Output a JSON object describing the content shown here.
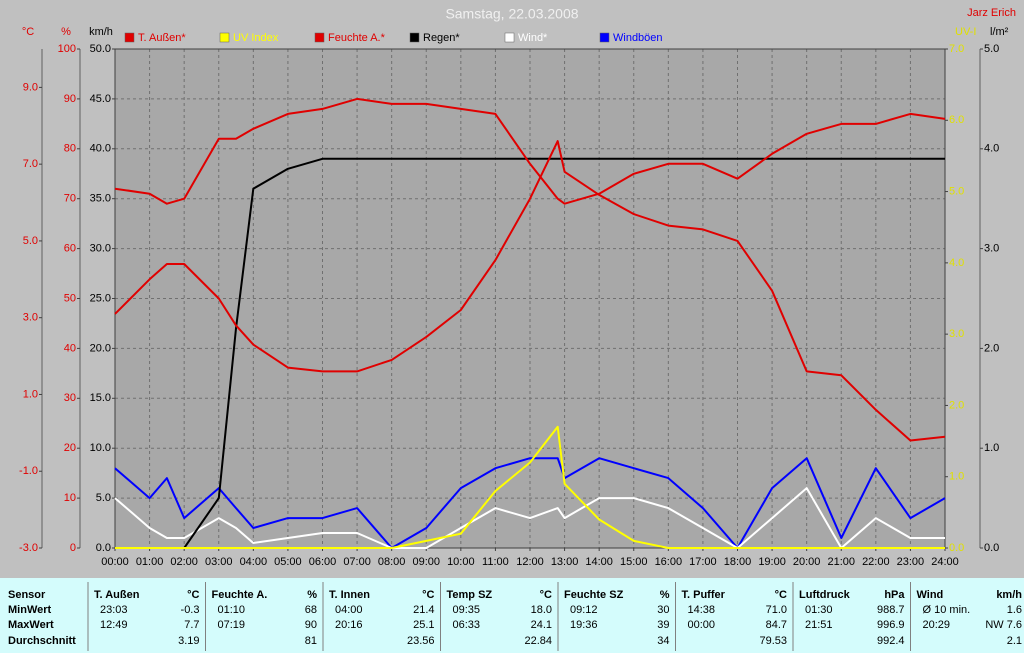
{
  "chart_data": {
    "type": "line",
    "title": "Samstag, 22.03.2008",
    "author": "Jarz Erich",
    "x": [
      0,
      1,
      1.5,
      2,
      3,
      3.5,
      4,
      5,
      6,
      7,
      8,
      9,
      10,
      11,
      12,
      12.8,
      13,
      14,
      15,
      16,
      17,
      18,
      19,
      20,
      21,
      22,
      23,
      24
    ],
    "xlim": [
      0,
      24
    ],
    "xticks": [
      {
        "value": 0,
        "label": "00:00"
      },
      {
        "value": 1,
        "label": "01:00"
      },
      {
        "value": 2,
        "label": "02:00"
      },
      {
        "value": 3,
        "label": "03:00"
      },
      {
        "value": 4,
        "label": "04:00"
      },
      {
        "value": 5,
        "label": "05:00"
      },
      {
        "value": 6,
        "label": "06:00"
      },
      {
        "value": 7,
        "label": "07:00"
      },
      {
        "value": 8,
        "label": "08:00"
      },
      {
        "value": 9,
        "label": "09:00"
      },
      {
        "value": 10,
        "label": "10:00"
      },
      {
        "value": 11,
        "label": "11:00"
      },
      {
        "value": 12,
        "label": "12:00"
      },
      {
        "value": 13,
        "label": "13:00"
      },
      {
        "value": 14,
        "label": "14:00"
      },
      {
        "value": 15,
        "label": "15:00"
      },
      {
        "value": 16,
        "label": "16:00"
      },
      {
        "value": 17,
        "label": "17:00"
      },
      {
        "value": 18,
        "label": "18:00"
      },
      {
        "value": 19,
        "label": "19:00"
      },
      {
        "value": 20,
        "label": "20:00"
      },
      {
        "value": 21,
        "label": "21:00"
      },
      {
        "value": 22,
        "label": "22:00"
      },
      {
        "value": 23,
        "label": "23:00"
      },
      {
        "value": 24,
        "label": "24:00"
      }
    ],
    "grid": true,
    "grid_axis": 2,
    "axes": [
      {
        "label": "°C",
        "side": "left",
        "color": "#e00000",
        "lim": [
          -3,
          10
        ],
        "ticks": [
          {
            "value": -3,
            "label": "-3.0"
          },
          {
            "value": -1,
            "label": "-1.0"
          },
          {
            "value": 1,
            "label": "1.0"
          },
          {
            "value": 3,
            "label": "3.0"
          },
          {
            "value": 5,
            "label": "5.0"
          },
          {
            "value": 7,
            "label": "7.0"
          },
          {
            "value": 9,
            "label": "9.0"
          }
        ]
      },
      {
        "label": "%",
        "side": "left",
        "color": "#e00000",
        "lim": [
          0,
          100
        ],
        "ticks": [
          0,
          10,
          20,
          30,
          40,
          50,
          60,
          70,
          80,
          90,
          100
        ]
      },
      {
        "label": "km/h",
        "side": "left",
        "color": "#000000",
        "lim": [
          0,
          50
        ],
        "ticks": [
          {
            "value": 0,
            "label": "0.0"
          },
          {
            "value": 5,
            "label": "5.0"
          },
          {
            "value": 10,
            "label": "10.0"
          },
          {
            "value": 15,
            "label": "15.0"
          },
          {
            "value": 20,
            "label": "20.0"
          },
          {
            "value": 25,
            "label": "25.0"
          },
          {
            "value": 30,
            "label": "30.0"
          },
          {
            "value": 35,
            "label": "35.0"
          },
          {
            "value": 40,
            "label": "40.0"
          },
          {
            "value": 45,
            "label": "45.0"
          },
          {
            "value": 50,
            "label": "50.0"
          }
        ]
      },
      {
        "label": "UV-I",
        "side": "right",
        "color": "#e0e000",
        "lim": [
          0,
          7
        ],
        "ticks": [
          {
            "value": 0,
            "label": "0.0"
          },
          {
            "value": 1,
            "label": "1.0"
          },
          {
            "value": 2,
            "label": "2.0"
          },
          {
            "value": 3,
            "label": "3.0"
          },
          {
            "value": 4,
            "label": "4.0"
          },
          {
            "value": 5,
            "label": "5.0"
          },
          {
            "value": 6,
            "label": "6.0"
          },
          {
            "value": 7,
            "label": "7.0"
          }
        ]
      },
      {
        "label": "l/m²",
        "side": "right",
        "color": "#000000",
        "lim": [
          0,
          5
        ],
        "ticks": [
          {
            "value": 0,
            "label": "0.0"
          },
          {
            "value": 1,
            "label": "1.0"
          },
          {
            "value": 2,
            "label": "2.0"
          },
          {
            "value": 3,
            "label": "3.0"
          },
          {
            "value": 4,
            "label": "4.0"
          },
          {
            "value": 5,
            "label": "5.0"
          }
        ]
      }
    ],
    "series": [
      {
        "name": "T. Außen*",
        "color": "#e00000",
        "axis": 0,
        "values": [
          3.1,
          4.0,
          4.4,
          4.4,
          3.5,
          2.8,
          2.3,
          1.7,
          1.6,
          1.6,
          1.9,
          2.5,
          3.2,
          4.5,
          6.1,
          7.6,
          6.8,
          6.2,
          5.7,
          5.4,
          5.3,
          5.0,
          3.7,
          1.6,
          1.5,
          0.6,
          -0.2,
          -0.1
        ]
      },
      {
        "name": "UV Index",
        "color": "#ffff00",
        "axis": 3,
        "values": [
          0,
          0,
          0,
          0,
          0,
          0,
          0,
          0,
          0,
          0,
          0,
          0.1,
          0.2,
          0.8,
          1.2,
          1.7,
          0.9,
          0.4,
          0.1,
          0,
          0,
          0,
          0,
          0,
          0,
          0,
          0,
          0
        ]
      },
      {
        "name": "Feuchte A.*",
        "color": "#e00000",
        "axis": 1,
        "values": [
          72,
          71,
          69,
          70,
          82,
          82,
          84,
          87,
          88,
          90,
          89,
          89,
          88,
          87,
          77,
          70,
          69,
          71,
          75,
          77,
          77,
          74,
          79,
          83,
          85,
          85,
          87,
          86
        ]
      },
      {
        "name": "Regen*",
        "color": "#000000",
        "axis": 4,
        "values": [
          0,
          0,
          0,
          0,
          0.5,
          2.2,
          3.6,
          3.8,
          3.9,
          3.9,
          3.9,
          3.9,
          3.9,
          3.9,
          3.9,
          3.9,
          3.9,
          3.9,
          3.9,
          3.9,
          3.9,
          3.9,
          3.9,
          3.9,
          3.9,
          3.9,
          3.9,
          3.9
        ]
      },
      {
        "name": "Wind*",
        "color": "#ffffff",
        "axis": 2,
        "values": [
          5,
          2,
          1,
          1,
          3,
          2,
          0.5,
          1,
          1.5,
          1.5,
          0,
          0,
          2,
          4,
          3,
          4,
          3,
          5,
          5,
          4,
          2,
          0,
          3,
          6,
          0,
          3,
          1,
          1
        ]
      },
      {
        "name": "Windböen",
        "color": "#0000ff",
        "axis": 2,
        "values": [
          8,
          5,
          7,
          3,
          6,
          4,
          2,
          3,
          3,
          4,
          0,
          2,
          6,
          8,
          9,
          9,
          7,
          9,
          8,
          7,
          4,
          0,
          6,
          9,
          1,
          8,
          3,
          5
        ]
      }
    ]
  },
  "table": {
    "row_labels": [
      "Sensor",
      "MinWert",
      "MaxWert",
      "Durchschnitt"
    ],
    "groups": [
      {
        "name": "T. Außen",
        "unit": "°C",
        "min": [
          "23:03",
          "-0.3"
        ],
        "max": [
          "12:49",
          "7.7"
        ],
        "avg": "3.19"
      },
      {
        "name": "Feuchte A.",
        "unit": "%",
        "min": [
          "01:10",
          "68"
        ],
        "max": [
          "07:19",
          "90"
        ],
        "avg": "81"
      },
      {
        "name": "T. Innen",
        "unit": "°C",
        "min": [
          "04:00",
          "21.4"
        ],
        "max": [
          "20:16",
          "25.1"
        ],
        "avg": "23.56"
      },
      {
        "name": "Temp SZ",
        "unit": "°C",
        "min": [
          "09:35",
          "18.0"
        ],
        "max": [
          "06:33",
          "24.1"
        ],
        "avg": "22.84"
      },
      {
        "name": "Feuchte SZ",
        "unit": "%",
        "min": [
          "09:12",
          "30"
        ],
        "max": [
          "19:36",
          "39"
        ],
        "avg": "34"
      },
      {
        "name": "T. Puffer",
        "unit": "°C",
        "min": [
          "14:38",
          "71.0"
        ],
        "max": [
          "00:00",
          "84.7"
        ],
        "avg": "79.53"
      },
      {
        "name": "Luftdruck",
        "unit": "hPa",
        "min": [
          "01:30",
          "988.7"
        ],
        "max": [
          "21:51",
          "996.9"
        ],
        "avg": "992.4"
      },
      {
        "name": "Wind",
        "unit": "km/h",
        "min": [
          "Ø 10 min.",
          "1.6"
        ],
        "max": [
          "20:29",
          "NW 7.6"
        ],
        "avg": "2.1"
      }
    ]
  }
}
